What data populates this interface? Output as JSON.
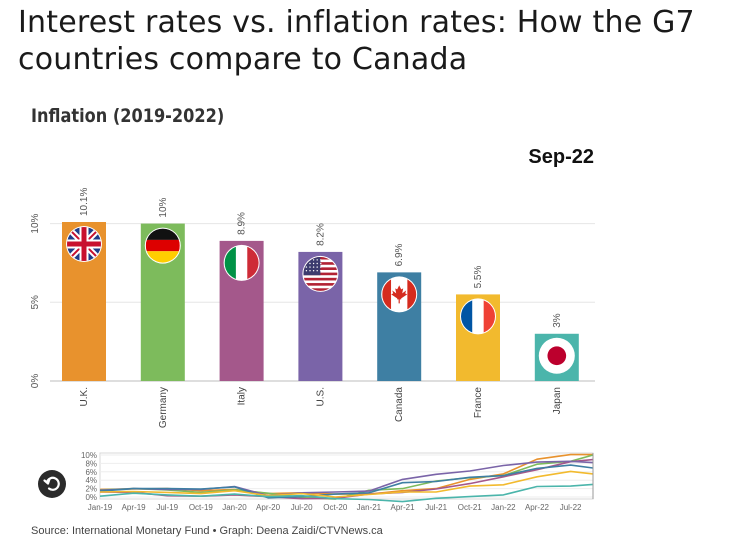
{
  "headline": "Interest rates vs. inflation rates: How the G7 countries compare to Canada",
  "chart_data": [
    {
      "type": "bar",
      "title": "Inflation (2019-2022)",
      "date_label": "Sep-22",
      "categories": [
        "U.K.",
        "Germany",
        "Italy",
        "U.S.",
        "Canada",
        "France",
        "Japan"
      ],
      "values": [
        10.1,
        10,
        8.9,
        8.2,
        6.9,
        5.5,
        3
      ],
      "value_labels": [
        "10.1%",
        "10%",
        "8.9%",
        "8.2%",
        "6.9%",
        "5.5%",
        "3%"
      ],
      "colors": [
        "#e8922d",
        "#7dbb5c",
        "#a4588b",
        "#7a64a8",
        "#3e7fa3",
        "#f2ba2e",
        "#4bb5ab"
      ],
      "flag_icons": [
        "uk-flag-icon",
        "germany-flag-icon",
        "italy-flag-icon",
        "us-flag-icon",
        "canada-flag-icon",
        "france-flag-icon",
        "japan-flag-icon"
      ],
      "y_ticks": [
        "0%",
        "5%",
        "10%"
      ],
      "ylim": [
        0,
        10.1
      ],
      "grid": true
    },
    {
      "type": "line",
      "x_ticks": [
        "Jan-19",
        "Apr-19",
        "Jul-19",
        "Oct-19",
        "Jan-20",
        "Apr-20",
        "Jul-20",
        "Oct-20",
        "Jan-21",
        "Apr-21",
        "Jul-21",
        "Oct-21",
        "Jan-22",
        "Apr-22",
        "Jul-22"
      ],
      "y_ticks": [
        "0%",
        "2%",
        "4%",
        "6%",
        "8%",
        "10%"
      ],
      "ylim": [
        0,
        10
      ],
      "x_dates": [
        "2019-01",
        "2019-04",
        "2019-07",
        "2019-10",
        "2020-01",
        "2020-04",
        "2020-07",
        "2020-10",
        "2021-01",
        "2021-04",
        "2021-07",
        "2021-10",
        "2022-01",
        "2022-04",
        "2022-07",
        "2022-09"
      ],
      "series": [
        {
          "name": "U.K.",
          "color": "#e8922d",
          "values": [
            1.8,
            1.9,
            2.0,
            1.5,
            1.8,
            0.8,
            1.0,
            0.7,
            0.7,
            1.5,
            2.0,
            4.2,
            5.5,
            9.0,
            10.1,
            10.1
          ]
        },
        {
          "name": "Germany",
          "color": "#7dbb5c",
          "values": [
            1.7,
            2.0,
            1.7,
            1.1,
            1.7,
            0.9,
            -0.1,
            -0.5,
            1.6,
            2.0,
            3.8,
            4.6,
            5.1,
            7.8,
            8.5,
            10.0
          ]
        },
        {
          "name": "Italy",
          "color": "#a4588b",
          "values": [
            1.2,
            1.1,
            0.3,
            0.2,
            0.5,
            0.1,
            -0.4,
            -0.3,
            0.7,
            1.1,
            1.9,
            3.2,
            4.8,
            6.5,
            8.4,
            8.9
          ]
        },
        {
          "name": "U.S.",
          "color": "#7a64a8",
          "values": [
            1.6,
            2.0,
            1.8,
            1.8,
            2.5,
            0.3,
            1.0,
            1.2,
            1.4,
            4.2,
            5.4,
            6.2,
            7.5,
            8.3,
            8.5,
            8.2
          ]
        },
        {
          "name": "Canada",
          "color": "#3e7fa3",
          "values": [
            1.4,
            2.0,
            2.0,
            1.9,
            2.4,
            -0.2,
            0.1,
            0.7,
            1.0,
            3.4,
            3.7,
            4.7,
            5.1,
            6.8,
            7.6,
            6.9
          ]
        },
        {
          "name": "France",
          "color": "#f2ba2e",
          "values": [
            1.2,
            1.3,
            1.1,
            0.8,
            1.5,
            0.3,
            0.8,
            0.0,
            0.6,
            1.2,
            1.2,
            2.6,
            2.9,
            4.8,
            6.1,
            5.5
          ]
        },
        {
          "name": "Japan",
          "color": "#4bb5ab",
          "values": [
            0.2,
            0.9,
            0.5,
            0.2,
            0.7,
            0.1,
            0.3,
            -0.4,
            -0.6,
            -1.1,
            -0.3,
            0.1,
            0.5,
            2.5,
            2.6,
            3.0
          ]
        }
      ]
    }
  ],
  "source_text": "Source: International Monetary Fund • Graph: Deena Zaidi/CTVNews.ca"
}
